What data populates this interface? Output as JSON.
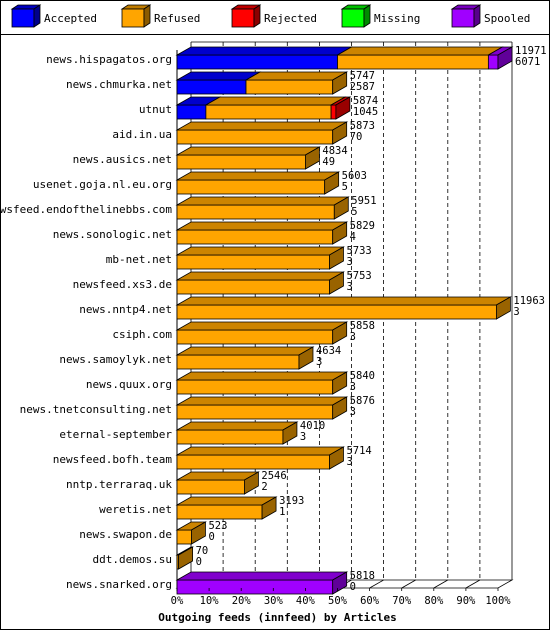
{
  "chart_data": {
    "type": "bar",
    "orientation": "horizontal",
    "stacked": true,
    "style": "3d",
    "xlabel": "Outgoing feeds (innfeed) by Articles",
    "xlim": [
      0,
      100
    ],
    "x_unit": "%",
    "ticks": [
      "0%",
      "10%",
      "20%",
      "30%",
      "40%",
      "50%",
      "60%",
      "70%",
      "80%",
      "90%",
      "100%"
    ],
    "grid": true,
    "legend_position": "top",
    "series": [
      {
        "name": "Accepted",
        "color": "#0000ff"
      },
      {
        "name": "Refused",
        "color": "#ffa500"
      },
      {
        "name": "Rejected",
        "color": "#ff0000"
      },
      {
        "name": "Missing",
        "color": "#00ff00"
      },
      {
        "name": "Spooled",
        "color": "#a000ff"
      }
    ],
    "rows": [
      {
        "name": "news.hispagatos.org",
        "label1": "11971",
        "label2": "6071",
        "segments": [
          50.0,
          47.0,
          0,
          0,
          3.0
        ]
      },
      {
        "name": "news.chmurka.net",
        "label1": "5747",
        "label2": "2587",
        "segments": [
          21.5,
          27.0,
          0,
          0,
          0
        ]
      },
      {
        "name": "utnut",
        "label1": "5874",
        "label2": "1045",
        "segments": [
          9.0,
          39.0,
          1.5,
          0,
          0
        ]
      },
      {
        "name": "aid.in.ua",
        "label1": "5873",
        "label2": "70",
        "segments": [
          0,
          48.5,
          0,
          0,
          0
        ]
      },
      {
        "name": "news.ausics.net",
        "label1": "4834",
        "label2": "49",
        "segments": [
          0,
          40.0,
          0,
          0,
          0
        ]
      },
      {
        "name": "usenet.goja.nl.eu.org",
        "label1": "5603",
        "label2": "5",
        "segments": [
          0,
          46.0,
          0,
          0,
          0
        ]
      },
      {
        "name": "newsfeed.endofthelinebbs.com",
        "label1": "5951",
        "label2": "5",
        "segments": [
          0,
          49.0,
          0,
          0,
          0
        ]
      },
      {
        "name": "news.sonologic.net",
        "label1": "5829",
        "label2": "4",
        "segments": [
          0,
          48.5,
          0,
          0,
          0
        ]
      },
      {
        "name": "mb-net.net",
        "label1": "5733",
        "label2": "3",
        "segments": [
          0,
          47.5,
          0,
          0,
          0
        ]
      },
      {
        "name": "newsfeed.xs3.de",
        "label1": "5753",
        "label2": "3",
        "segments": [
          0,
          47.5,
          0,
          0,
          0
        ]
      },
      {
        "name": "news.nntp4.net",
        "label1": "11963",
        "label2": "3",
        "segments": [
          0,
          99.5,
          0,
          0,
          0
        ]
      },
      {
        "name": "csiph.com",
        "label1": "5858",
        "label2": "3",
        "segments": [
          0,
          48.5,
          0,
          0,
          0
        ]
      },
      {
        "name": "news.samoylyk.net",
        "label1": "4634",
        "label2": "3",
        "segments": [
          0,
          38.0,
          0,
          0,
          0
        ]
      },
      {
        "name": "news.quux.org",
        "label1": "5840",
        "label2": "3",
        "segments": [
          0,
          48.5,
          0,
          0,
          0
        ]
      },
      {
        "name": "news.tnetconsulting.net",
        "label1": "5876",
        "label2": "3",
        "segments": [
          0,
          48.5,
          0,
          0,
          0
        ]
      },
      {
        "name": "eternal-september",
        "label1": "4010",
        "label2": "3",
        "segments": [
          0,
          33.0,
          0,
          0,
          0
        ]
      },
      {
        "name": "newsfeed.bofh.team",
        "label1": "5714",
        "label2": "3",
        "segments": [
          0,
          47.5,
          0,
          0,
          0
        ]
      },
      {
        "name": "nntp.terraraq.uk",
        "label1": "2546",
        "label2": "2",
        "segments": [
          0,
          21.0,
          0,
          0,
          0
        ]
      },
      {
        "name": "weretis.net",
        "label1": "3193",
        "label2": "1",
        "segments": [
          0,
          26.5,
          0,
          0,
          0
        ]
      },
      {
        "name": "news.swapon.de",
        "label1": "523",
        "label2": "0",
        "segments": [
          0,
          4.5,
          0,
          0,
          0
        ]
      },
      {
        "name": "ddt.demos.su",
        "label1": "70",
        "label2": "0",
        "segments": [
          0,
          0.5,
          0,
          0,
          0
        ]
      },
      {
        "name": "news.snarked.org",
        "label1": "5818",
        "label2": "0",
        "segments": [
          0,
          0,
          0,
          0,
          48.5
        ]
      }
    ]
  }
}
